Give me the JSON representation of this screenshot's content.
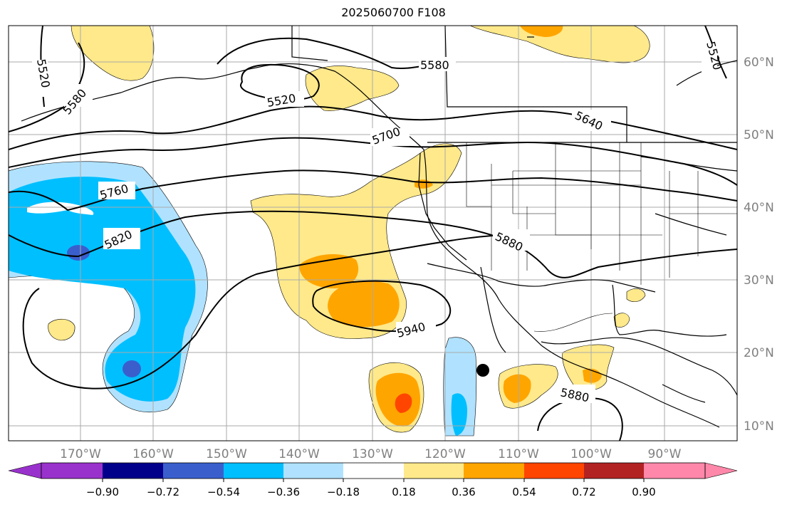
{
  "title": "2025060700 F108",
  "map": {
    "lon_labels": [
      "170°W",
      "160°W",
      "150°W",
      "140°W",
      "130°W",
      "120°W",
      "110°W",
      "100°W",
      "90°W"
    ],
    "lat_labels": [
      "60°N",
      "50°N",
      "40°N",
      "30°N",
      "20°N",
      "10°N"
    ],
    "contour_labels": [
      "5520",
      "5580",
      "5520",
      "5520",
      "5580",
      "5640",
      "5700",
      "5760",
      "5820",
      "5880",
      "5940",
      "5880",
      "5520"
    ],
    "marker": "storm-center-dot"
  },
  "colorbar": {
    "tick_labels": [
      "−0.90",
      "−0.72",
      "−0.54",
      "−0.36",
      "−0.18",
      "0.18",
      "0.36",
      "0.54",
      "0.72",
      "0.90"
    ],
    "colors": [
      "#9932cc",
      "#00008b",
      "#3a5fcd",
      "#00bfff",
      "#b0e2ff",
      "#ffffff",
      "#ffe98a",
      "#ffa500",
      "#ff4500",
      "#b22222",
      "#ff88aa"
    ]
  }
}
